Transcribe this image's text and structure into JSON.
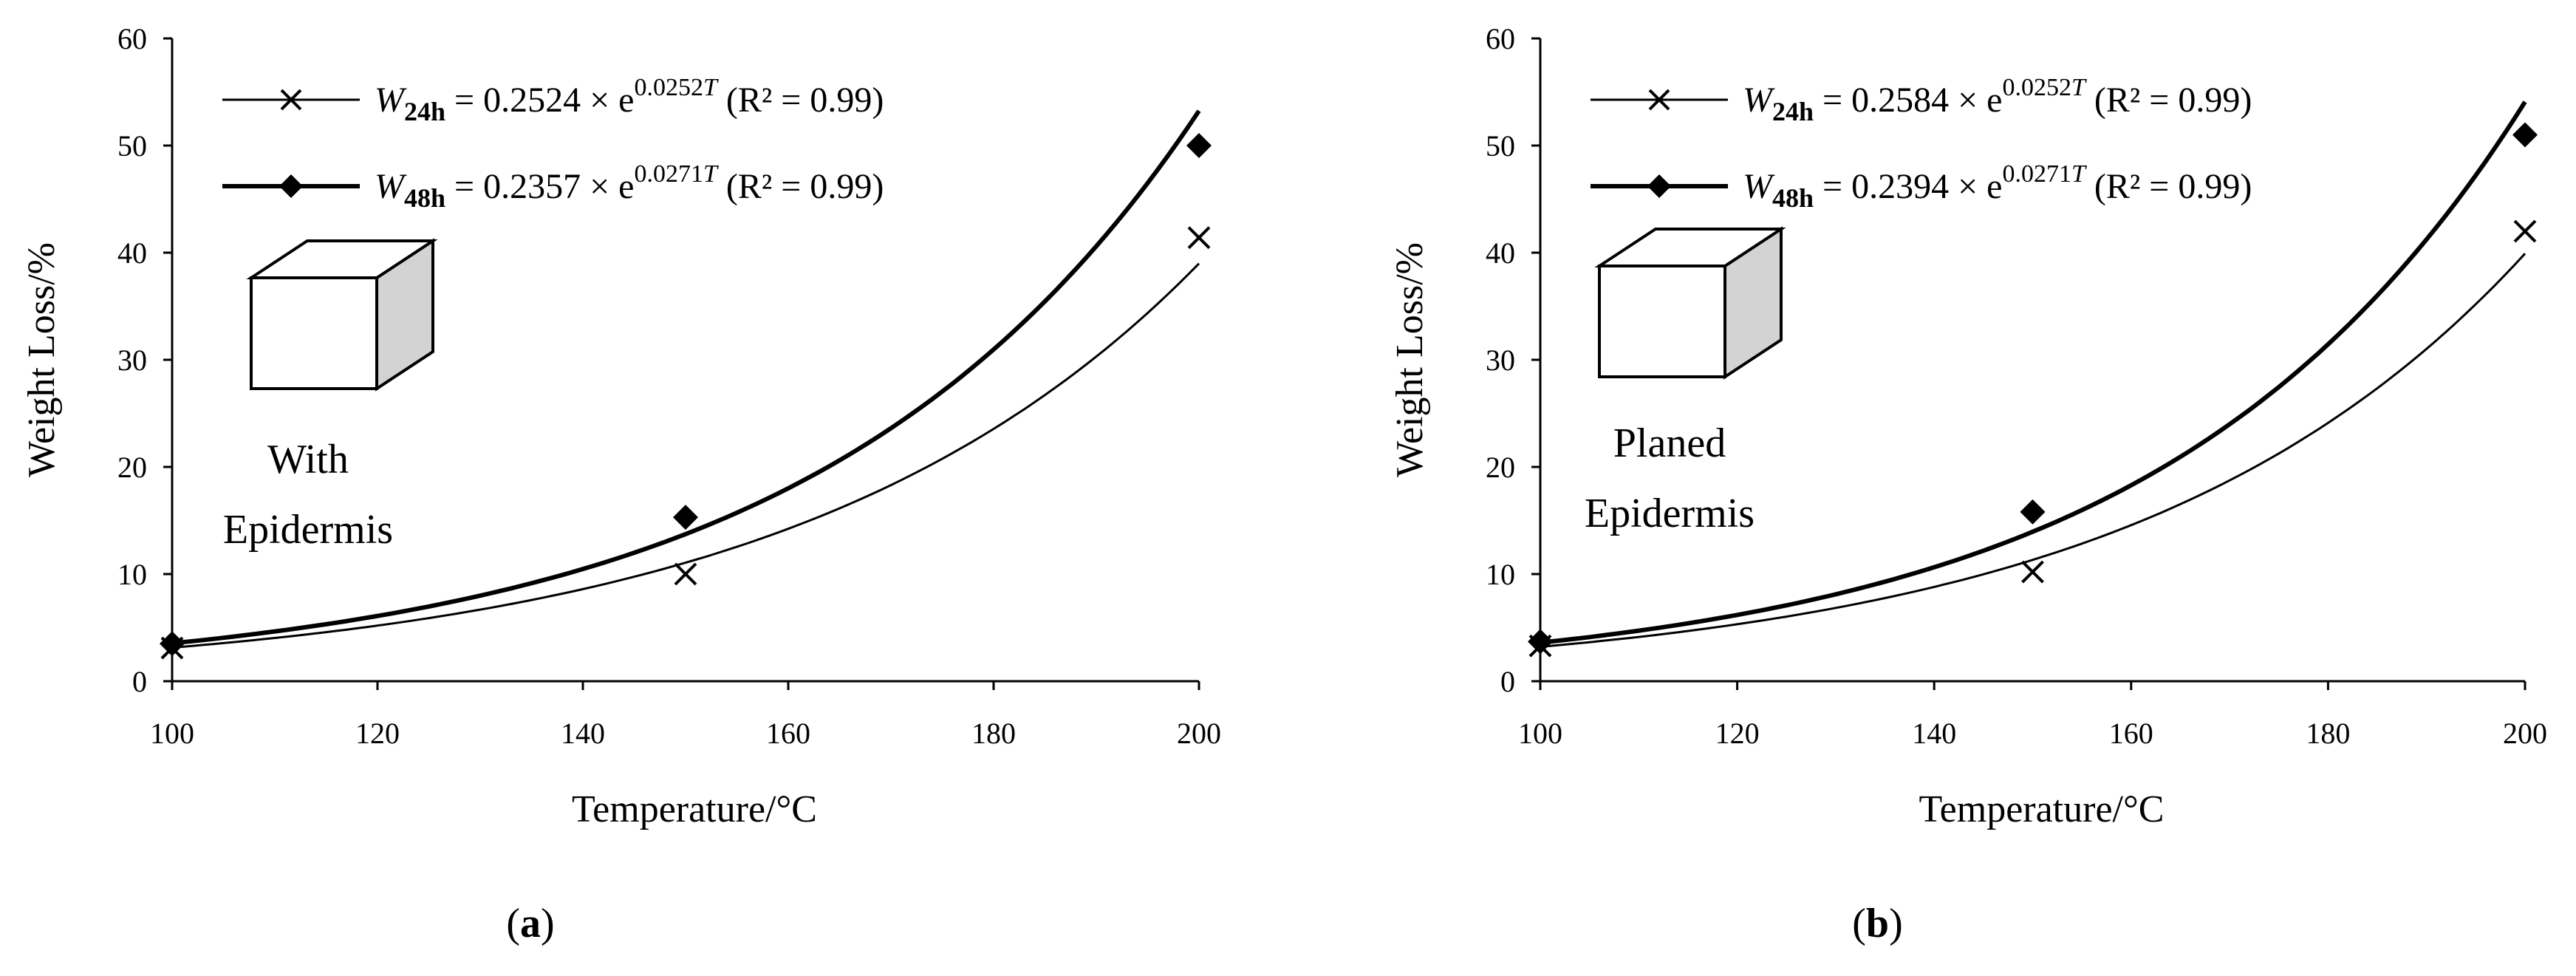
{
  "chart_data": [
    {
      "type": "scatter",
      "panel": "(a)",
      "panel_letter": "a",
      "xlabel": "Temperature/°C",
      "ylabel": "Weight Loss/%",
      "xlim": [
        100,
        200
      ],
      "ylim": [
        0,
        60
      ],
      "xticks": [
        100,
        120,
        140,
        160,
        180,
        200
      ],
      "yticks": [
        0,
        10,
        20,
        30,
        40,
        50,
        60
      ],
      "grid": false,
      "legend_position": "top-left",
      "box_label_lines": [
        "With",
        "Epidermis"
      ],
      "series": [
        {
          "name": "W24h",
          "marker": "x",
          "legend": {
            "sym": "W",
            "sub": "24h",
            "eq": " = 0.2524 × e",
            "exp": "0.0252",
            "expvar": "T",
            "r2": "(R² = 0.99)"
          },
          "points": [
            {
              "x": 100,
              "y": 3.1
            },
            {
              "x": 150,
              "y": 10.0
            },
            {
              "x": 200,
              "y": 41.4
            }
          ],
          "fit": {
            "a": 0.2524,
            "b": 0.0252
          }
        },
        {
          "name": "W48h",
          "marker": "diamond",
          "legend": {
            "sym": "W",
            "sub": "48h",
            "eq": " = 0.2357 × e",
            "exp": "0.0271",
            "expvar": "T",
            "r2": "(R² = 0.99)"
          },
          "points": [
            {
              "x": 100,
              "y": 3.5
            },
            {
              "x": 150,
              "y": 15.3
            },
            {
              "x": 200,
              "y": 50.0
            }
          ],
          "fit": {
            "a": 0.2357,
            "b": 0.0271
          }
        }
      ]
    },
    {
      "type": "scatter",
      "panel": "(b)",
      "panel_letter": "b",
      "xlabel": "Temperature/°C",
      "ylabel": "Weight Loss/%",
      "xlim": [
        100,
        200
      ],
      "ylim": [
        0,
        60
      ],
      "xticks": [
        100,
        120,
        140,
        160,
        180,
        200
      ],
      "yticks": [
        0,
        10,
        20,
        30,
        40,
        50,
        60
      ],
      "grid": false,
      "legend_position": "top-left",
      "box_label_lines": [
        "Planed",
        "Epidermis"
      ],
      "series": [
        {
          "name": "W24h",
          "marker": "x",
          "legend": {
            "sym": "W",
            "sub": "24h",
            "eq": " = 0.2584 × e",
            "exp": "0.0252",
            "expvar": "T",
            "r2": "(R² = 0.99)"
          },
          "points": [
            {
              "x": 100,
              "y": 3.3
            },
            {
              "x": 150,
              "y": 10.2
            },
            {
              "x": 200,
              "y": 42.0
            }
          ],
          "fit": {
            "a": 0.2584,
            "b": 0.0252
          }
        },
        {
          "name": "W48h",
          "marker": "diamond",
          "legend": {
            "sym": "W",
            "sub": "48h",
            "eq": " = 0.2394 × e",
            "exp": "0.0271",
            "expvar": "T",
            "r2": "(R² = 0.99)"
          },
          "points": [
            {
              "x": 100,
              "y": 3.7
            },
            {
              "x": 150,
              "y": 15.8
            },
            {
              "x": 200,
              "y": 51.0
            }
          ],
          "fit": {
            "a": 0.2394,
            "b": 0.0271
          }
        }
      ]
    }
  ]
}
